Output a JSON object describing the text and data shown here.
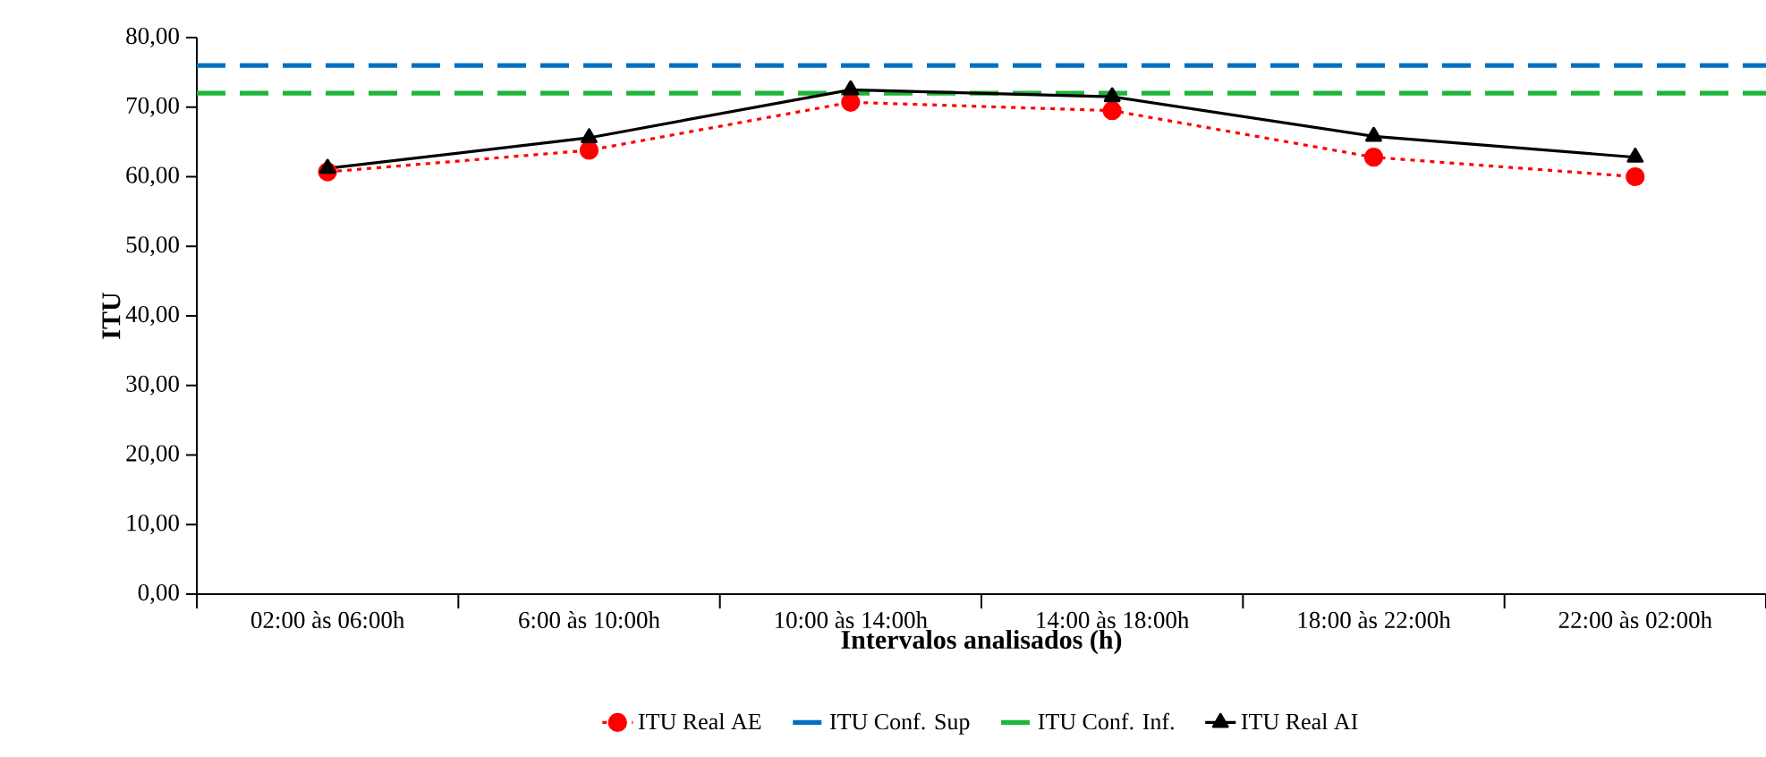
{
  "chart_data": {
    "type": "line",
    "xlabel": "Intervalos analisados (h)",
    "ylabel": "ITU",
    "categories": [
      "02:00 às 06:00h",
      "6:00 às 10:00h",
      "10:00 às 14:00h",
      "14:00 às 18:00h",
      "18:00 às 22:00h",
      "22:00 às 02:00h"
    ],
    "series": [
      {
        "name": "ITU Real AE",
        "color": "#ff0000",
        "marker": "circle",
        "line_style": "dotted",
        "values": [
          60.7,
          63.8,
          70.7,
          69.5,
          62.8,
          60.0
        ]
      },
      {
        "name": "ITU Real AI",
        "color": "#000000",
        "marker": "triangle",
        "line_style": "solid",
        "values": [
          61.2,
          65.6,
          72.5,
          71.5,
          65.8,
          62.8
        ]
      }
    ],
    "ref_lines": [
      {
        "axis": "y",
        "value": 76,
        "label": "ITU Conf. Sup",
        "color": "#0070c0",
        "line_style": "dashed"
      },
      {
        "axis": "y",
        "value": 72,
        "label": "ITU Conf. Inf.",
        "color": "#1db53a",
        "line_style": "dashed"
      }
    ],
    "ylim": [
      0,
      80
    ],
    "yticks": [
      {
        "value": 0,
        "label": "0,00"
      },
      {
        "value": 10,
        "label": "10,00"
      },
      {
        "value": 20,
        "label": "20,00"
      },
      {
        "value": 30,
        "label": "30,00"
      },
      {
        "value": 40,
        "label": "40,00"
      },
      {
        "value": 50,
        "label": "50,00"
      },
      {
        "value": 60,
        "label": "60,00"
      },
      {
        "value": 70,
        "label": "70,00"
      },
      {
        "value": 80,
        "label": "80,00"
      }
    ],
    "grid": false,
    "legend": "bottom"
  }
}
